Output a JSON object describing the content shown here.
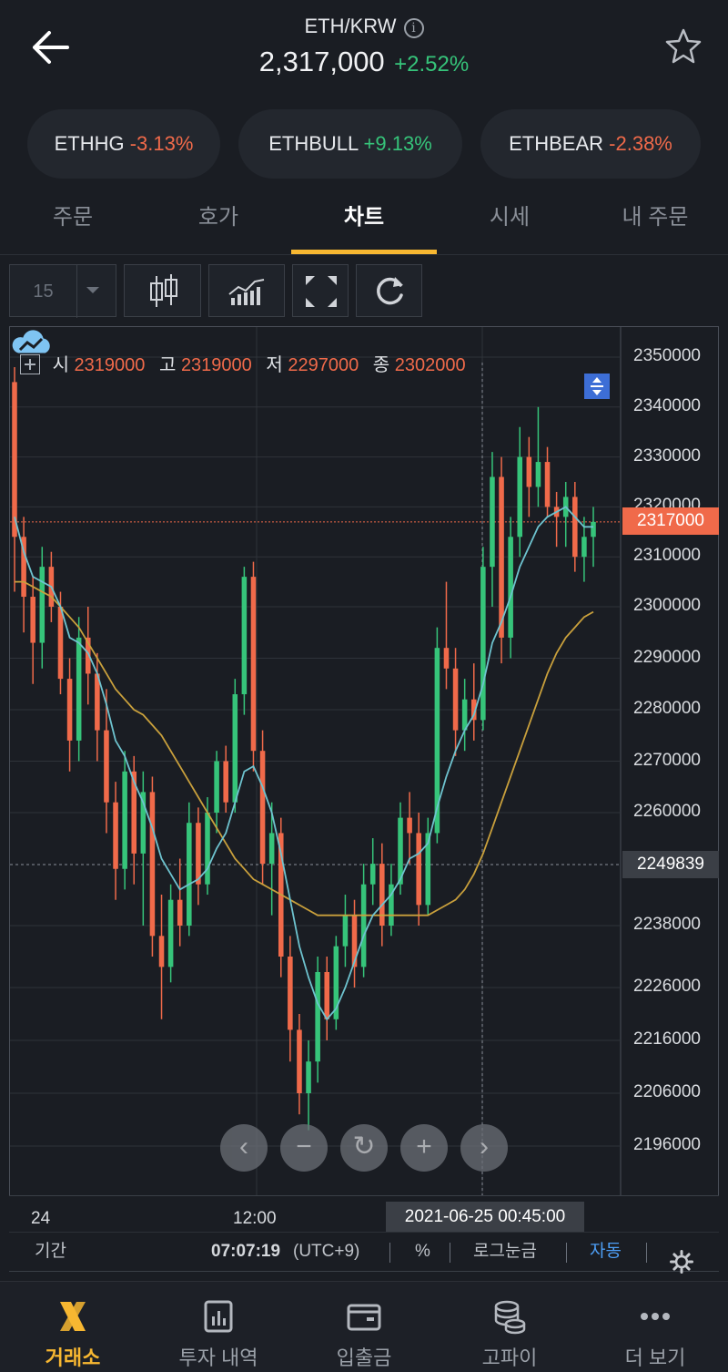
{
  "header": {
    "pair": "ETH/KRW",
    "price": "2,317,000",
    "change": "+2.52%"
  },
  "chips": [
    {
      "name": "ETHHG",
      "change": "-3.13%",
      "dir": "neg"
    },
    {
      "name": "ETHBULL",
      "change": "+9.13%",
      "dir": "pos"
    },
    {
      "name": "ETHBEAR",
      "change": "-2.38%",
      "dir": "neg"
    }
  ],
  "tabs": [
    "주문",
    "호가",
    "차트",
    "시세",
    "내 주문"
  ],
  "active_tab": "차트",
  "toolbar": {
    "interval": "15"
  },
  "ohlc": {
    "open_label": "시",
    "open": "2319000",
    "high_label": "고",
    "high": "2319000",
    "low_label": "저",
    "low": "2297000",
    "close_label": "종",
    "close": "2302000"
  },
  "current_price_tag": "2317000",
  "crosshair_price_tag": "2249839",
  "crosshair_time": "2021-06-25 00:45:00",
  "statusbar": {
    "period": "기간",
    "time": "07:07:19",
    "tz": "(UTC+9)",
    "percent": "%",
    "log": "로그눈금",
    "auto": "자동"
  },
  "nav": [
    {
      "label": "거래소",
      "icon": "exchange-x-icon",
      "active": true
    },
    {
      "label": "투자 내역",
      "icon": "report-icon",
      "active": false
    },
    {
      "label": "입출금",
      "icon": "wallet-icon",
      "active": false
    },
    {
      "label": "고파이",
      "icon": "coins-icon",
      "active": false
    },
    {
      "label": "더 보기",
      "icon": "more-dots-icon",
      "active": false
    }
  ],
  "colors": {
    "up": "#36c47a",
    "down": "#f06a4a",
    "accent": "#f7b731",
    "ma_short": "#6ec3cf",
    "ma_long": "#c9a03c"
  },
  "chart_data": {
    "type": "candlestick",
    "yticks": [
      "2350000",
      "2340000",
      "2330000",
      "2320000",
      "2310000",
      "2300000",
      "2290000",
      "2280000",
      "2270000",
      "2260000",
      "2238000",
      "2226000",
      "2216000",
      "2206000",
      "2196000"
    ],
    "xticks": [
      "24",
      "12:00"
    ],
    "series": [
      {
        "name": "",
        "kind": "candles",
        "values": [
          [
            2345000,
            2348000,
            2303000,
            2314000
          ],
          [
            2314000,
            2318000,
            2295000,
            2302000
          ],
          [
            2302000,
            2306000,
            2285000,
            2293000
          ],
          [
            2293000,
            2312000,
            2288000,
            2308000
          ],
          [
            2308000,
            2311000,
            2297000,
            2300000
          ],
          [
            2300000,
            2303000,
            2283000,
            2286000
          ],
          [
            2286000,
            2290000,
            2268000,
            2274000
          ],
          [
            2274000,
            2298000,
            2270000,
            2294000
          ],
          [
            2294000,
            2300000,
            2281000,
            2287000
          ],
          [
            2287000,
            2291000,
            2270000,
            2276000
          ],
          [
            2276000,
            2284000,
            2256000,
            2262000
          ],
          [
            2262000,
            2266000,
            2243000,
            2249000
          ],
          [
            2249000,
            2272000,
            2245000,
            2268000
          ],
          [
            2268000,
            2271000,
            2246000,
            2252000
          ],
          [
            2252000,
            2268000,
            2238000,
            2264000
          ],
          [
            2264000,
            2267000,
            2232000,
            2236000
          ],
          [
            2236000,
            2244000,
            2220000,
            2230000
          ],
          [
            2230000,
            2246000,
            2227000,
            2243000
          ],
          [
            2243000,
            2251000,
            2234000,
            2238000
          ],
          [
            2238000,
            2262000,
            2236000,
            2258000
          ],
          [
            2258000,
            2261000,
            2242000,
            2246000
          ],
          [
            2246000,
            2263000,
            2244000,
            2260000
          ],
          [
            2260000,
            2272000,
            2256000,
            2270000
          ],
          [
            2270000,
            2273000,
            2260000,
            2262000
          ],
          [
            2262000,
            2286000,
            2260000,
            2283000
          ],
          [
            2283000,
            2308000,
            2279000,
            2306000
          ],
          [
            2306000,
            2309000,
            2268000,
            2272000
          ],
          [
            2272000,
            2276000,
            2246000,
            2250000
          ],
          [
            2250000,
            2262000,
            2240000,
            2256000
          ],
          [
            2256000,
            2259000,
            2228000,
            2232000
          ],
          [
            2232000,
            2236000,
            2212000,
            2218000
          ],
          [
            2218000,
            2221000,
            2202000,
            2206000
          ],
          [
            2206000,
            2216000,
            2199000,
            2212000
          ],
          [
            2212000,
            2232000,
            2208000,
            2229000
          ],
          [
            2229000,
            2232000,
            2216000,
            2220000
          ],
          [
            2220000,
            2236000,
            2218000,
            2234000
          ],
          [
            2234000,
            2244000,
            2230000,
            2240000
          ],
          [
            2240000,
            2243000,
            2226000,
            2230000
          ],
          [
            2230000,
            2250000,
            2228000,
            2246000
          ],
          [
            2246000,
            2255000,
            2242000,
            2250000
          ],
          [
            2250000,
            2254000,
            2234000,
            2238000
          ],
          [
            2238000,
            2250000,
            2236000,
            2246000
          ],
          [
            2246000,
            2262000,
            2244000,
            2259000
          ],
          [
            2259000,
            2264000,
            2250000,
            2256000
          ],
          [
            2256000,
            2260000,
            2238000,
            2242000
          ],
          [
            2242000,
            2259000,
            2240000,
            2256000
          ],
          [
            2256000,
            2296000,
            2254000,
            2292000
          ],
          [
            2292000,
            2305000,
            2284000,
            2288000
          ],
          [
            2288000,
            2292000,
            2271000,
            2276000
          ],
          [
            2276000,
            2286000,
            2272000,
            2282000
          ],
          [
            2282000,
            2289000,
            2274000,
            2278000
          ],
          [
            2278000,
            2312000,
            2276000,
            2308000
          ],
          [
            2308000,
            2331000,
            2300000,
            2326000
          ],
          [
            2326000,
            2330000,
            2289000,
            2294000
          ],
          [
            2294000,
            2318000,
            2290000,
            2314000
          ],
          [
            2314000,
            2336000,
            2310000,
            2330000
          ],
          [
            2330000,
            2334000,
            2318000,
            2324000
          ],
          [
            2324000,
            2340000,
            2320000,
            2329000
          ],
          [
            2329000,
            2332000,
            2318000,
            2320000
          ],
          [
            2320000,
            2323000,
            2312000,
            2318000
          ],
          [
            2318000,
            2325000,
            2312000,
            2322000
          ],
          [
            2322000,
            2325000,
            2307000,
            2310000
          ],
          [
            2310000,
            2318000,
            2305000,
            2314000
          ],
          [
            2314000,
            2320000,
            2308000,
            2317000
          ]
        ]
      },
      {
        "name": "",
        "kind": "ma-short",
        "values": [
          2318000,
          2311000,
          2306000,
          2305000,
          2304000,
          2300000,
          2294000,
          2293000,
          2291000,
          2287000,
          2281000,
          2274000,
          2271000,
          2266000,
          2262000,
          2257000,
          2251000,
          2248000,
          2245000,
          2246000,
          2247000,
          2249000,
          2253000,
          2256000,
          2262000,
          2268000,
          2269000,
          2265000,
          2260000,
          2252000,
          2243000,
          2234000,
          2228000,
          2223000,
          2220000,
          2222000,
          2226000,
          2231000,
          2236000,
          2240000,
          2242000,
          2244000,
          2247000,
          2251000,
          2252000,
          2254000,
          2261000,
          2267000,
          2272000,
          2276000,
          2279000,
          2285000,
          2293000,
          2297000,
          2302000,
          2308000,
          2312000,
          2316000,
          2318000,
          2319000,
          2320000,
          2318000,
          2316000,
          2316000
        ]
      },
      {
        "name": "",
        "kind": "ma-long",
        "values": [
          2305000,
          2305000,
          2304000,
          2303000,
          2302000,
          2300000,
          2298000,
          2296000,
          2293000,
          2290000,
          2287000,
          2284000,
          2282000,
          2280000,
          2279000,
          2277000,
          2275000,
          2272000,
          2269000,
          2266000,
          2263000,
          2260000,
          2257000,
          2254000,
          2251000,
          2249000,
          2247000,
          2246000,
          2245000,
          2244000,
          2243000,
          2242000,
          2241000,
          2240000,
          2240000,
          2240000,
          2240000,
          2240000,
          2240000,
          2240000,
          2240000,
          2240000,
          2240000,
          2240000,
          2240000,
          2240000,
          2241000,
          2242000,
          2243000,
          2245000,
          2248000,
          2252000,
          2257000,
          2262000,
          2267000,
          2272000,
          2277000,
          2282000,
          2287000,
          2291000,
          2294000,
          2296000,
          2298000,
          2299000
        ]
      }
    ]
  }
}
